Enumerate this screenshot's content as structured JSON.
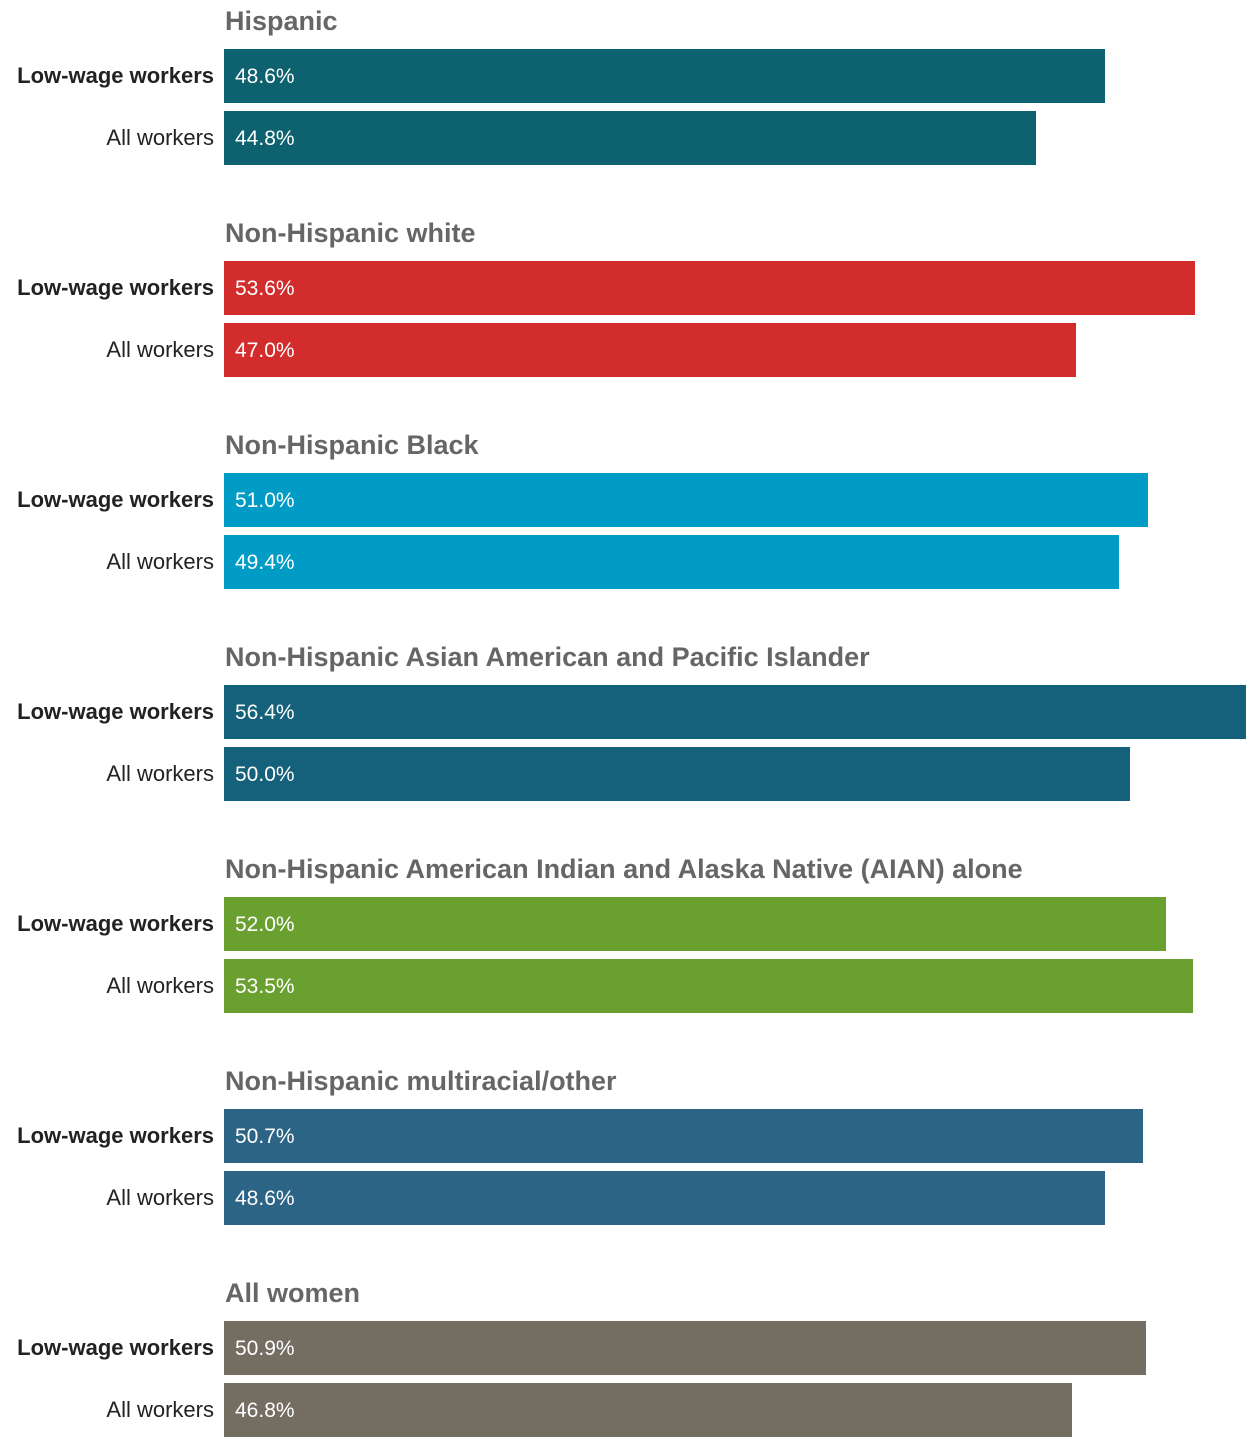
{
  "chart_data": {
    "type": "bar",
    "orientation": "horizontal",
    "row_labels": [
      "Low-wage workers",
      "All workers"
    ],
    "xlim": [
      0,
      56.4
    ],
    "groups": [
      {
        "name": "Hispanic",
        "color": "#0e616e",
        "values": [
          48.6,
          44.8
        ],
        "value_labels": [
          "48.6%",
          "44.8%"
        ]
      },
      {
        "name": "Non-Hispanic white",
        "color": "#d22c2d",
        "values": [
          53.6,
          47.0
        ],
        "value_labels": [
          "53.6%",
          "47.0%"
        ]
      },
      {
        "name": "Non-Hispanic Black",
        "color": "#019cc5",
        "values": [
          51.0,
          49.4
        ],
        "value_labels": [
          "51.0%",
          "49.4%"
        ]
      },
      {
        "name": "Non-Hispanic Asian American and Pacific Islander",
        "color": "#15607a",
        "values": [
          56.4,
          50.0
        ],
        "value_labels": [
          "56.4%",
          "50.0%"
        ]
      },
      {
        "name": "Non-Hispanic American Indian and Alaska Native (AIAN) alone",
        "color": "#6aa030",
        "values": [
          52.0,
          53.5
        ],
        "value_labels": [
          "52.0%",
          "53.5%"
        ]
      },
      {
        "name": "Non-Hispanic multiracial/other",
        "color": "#2c6486",
        "values": [
          50.7,
          48.6
        ],
        "value_labels": [
          "50.7%",
          "48.6%"
        ]
      },
      {
        "name": "All women",
        "color": "#736d62",
        "values": [
          50.9,
          46.8
        ],
        "value_labels": [
          "50.9%",
          "46.8%"
        ]
      }
    ]
  }
}
